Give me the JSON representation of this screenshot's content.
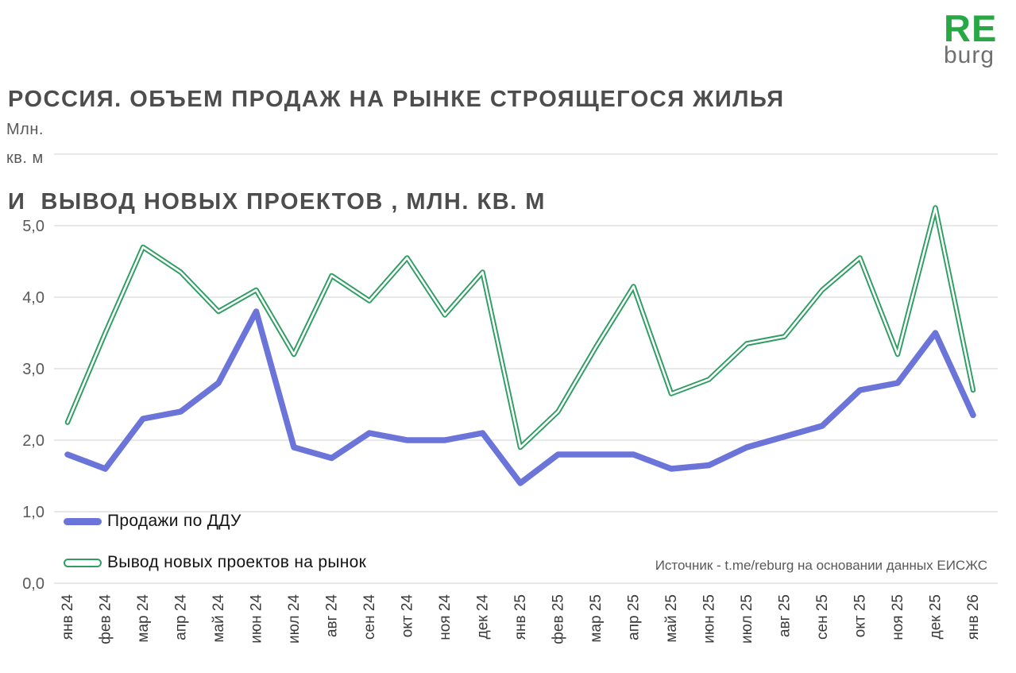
{
  "title": {
    "line1": "РОССИЯ. ОБЪЕМ ПРОДАЖ НА РЫНКЕ СТРОЯЩЕГОСЯ ЖИЛЬЯ",
    "line2": "И  ВЫВОД НОВЫХ ПРОЕКТОВ , МЛН. КВ. М"
  },
  "logo": {
    "top": "RE",
    "bottom": "burg",
    "green": "#27a845",
    "gray": "#6f6f6f"
  },
  "y_axis": {
    "unit_line1": "Млн.",
    "unit_line2": "кв. м",
    "tick_labels": [
      "0,0",
      "1,0",
      "2,0",
      "3,0",
      "4,0",
      "5,0"
    ]
  },
  "source_note": "Источник - t.me/reburg на основании данных ЕИСЖС",
  "colors": {
    "sales_line": "#6b74d8",
    "launches_line": "#2f9e63",
    "grid": "#d9d9d9",
    "y_tick_text": "#595959",
    "x_tick_text": "#3a3a3a",
    "title_text": "#4d4d4d"
  },
  "chart_data": {
    "type": "line",
    "title": "РОССИЯ. ОБЪЕМ ПРОДАЖ НА РЫНКЕ СТРОЯЩЕГОСЯ ЖИЛЬЯ И ВЫВОД НОВЫХ ПРОЕКТОВ, МЛН. КВ. М",
    "ylabel": "Млн. кв. м",
    "ylim": [
      0,
      6
    ],
    "ytick_step": 1,
    "grid": true,
    "legend_position": "bottom-left-inside",
    "categories": [
      "янв 24",
      "фев 24",
      "мар 24",
      "апр 24",
      "май 24",
      "июн 24",
      "июл 24",
      "авг 24",
      "сен 24",
      "окт 24",
      "ноя 24",
      "дек 24",
      "янв 25",
      "фев 25",
      "мар 25",
      "апр 25",
      "май 25",
      "июн 25",
      "июл 25",
      "авг 25",
      "сен 25",
      "окт 25",
      "ноя 25",
      "дек 25",
      "янв 26"
    ],
    "series": [
      {
        "name": "Продажи по ДДУ",
        "style": "solid-thick",
        "color": "#6b74d8",
        "values": [
          1.8,
          1.6,
          2.3,
          2.4,
          2.8,
          3.8,
          1.9,
          1.75,
          2.1,
          2.0,
          2.0,
          2.1,
          1.4,
          1.8,
          1.8,
          1.8,
          1.6,
          1.65,
          1.9,
          2.05,
          2.2,
          2.7,
          2.8,
          3.5,
          2.35
        ]
      },
      {
        "name": "Вывод новых проектов на рынок",
        "style": "outlined",
        "color": "#2f9e63",
        "values": [
          2.25,
          3.5,
          4.7,
          4.35,
          3.8,
          4.1,
          3.2,
          4.3,
          3.95,
          4.55,
          3.75,
          4.35,
          1.9,
          2.4,
          3.3,
          4.15,
          2.65,
          2.85,
          3.35,
          3.45,
          4.1,
          4.55,
          3.2,
          5.25,
          2.7
        ]
      }
    ]
  }
}
